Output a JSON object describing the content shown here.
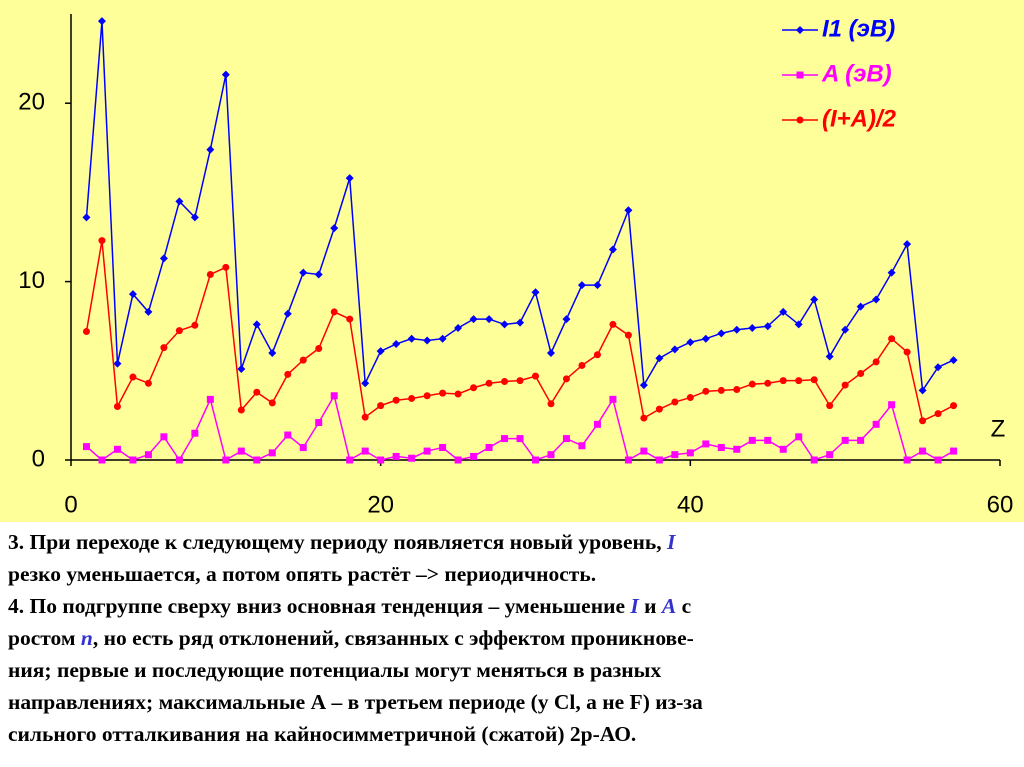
{
  "chart_data": {
    "type": "line",
    "x": [
      1,
      2,
      3,
      4,
      5,
      6,
      7,
      8,
      9,
      10,
      11,
      12,
      13,
      14,
      15,
      16,
      17,
      18,
      19,
      20,
      21,
      22,
      23,
      24,
      25,
      26,
      27,
      28,
      29,
      30,
      31,
      32,
      33,
      34,
      35,
      36,
      37,
      38,
      39,
      40,
      41,
      42,
      43,
      44,
      45,
      46,
      47,
      48,
      49,
      50,
      51,
      52,
      53,
      54,
      55,
      56,
      57
    ],
    "series": [
      {
        "name": "I1 (эВ)",
        "color": "#0000ff",
        "marker": "diamond",
        "values": [
          13.6,
          24.6,
          5.4,
          9.3,
          8.3,
          11.3,
          14.5,
          13.6,
          17.4,
          21.6,
          5.1,
          7.6,
          6.0,
          8.2,
          10.5,
          10.4,
          13.0,
          15.8,
          4.3,
          6.1,
          6.5,
          6.8,
          6.7,
          6.8,
          7.4,
          7.9,
          7.9,
          7.6,
          7.7,
          9.4,
          6.0,
          7.9,
          9.8,
          9.8,
          11.8,
          14.0,
          4.2,
          5.7,
          6.2,
          6.6,
          6.8,
          7.1,
          7.3,
          7.4,
          7.5,
          8.3,
          7.6,
          9.0,
          5.8,
          7.3,
          8.6,
          9.0,
          10.5,
          12.1,
          3.9,
          5.2,
          5.6
        ]
      },
      {
        "name": "A (эВ)",
        "color": "#ff00ff",
        "marker": "square",
        "values": [
          0.75,
          0,
          0.6,
          0,
          0.3,
          1.3,
          0,
          1.5,
          3.4,
          0,
          0.5,
          0,
          0.4,
          1.4,
          0.7,
          2.1,
          3.6,
          0,
          0.5,
          0,
          0.2,
          0.1,
          0.5,
          0.7,
          0,
          0.2,
          0.7,
          1.2,
          1.2,
          0,
          0.3,
          1.2,
          0.8,
          2.0,
          3.4,
          0,
          0.5,
          0,
          0.3,
          0.4,
          0.9,
          0.7,
          0.6,
          1.1,
          1.1,
          0.6,
          1.3,
          0,
          0.3,
          1.1,
          1.1,
          2.0,
          3.1,
          0,
          0.5,
          0,
          0.5
        ]
      },
      {
        "name": "(I+A)/2",
        "color": "#ff0000",
        "marker": "circle",
        "values": [
          7.2,
          12.3,
          3.0,
          4.65,
          4.3,
          6.3,
          7.25,
          7.55,
          10.4,
          10.8,
          2.8,
          3.8,
          3.2,
          4.8,
          5.6,
          6.25,
          8.3,
          7.9,
          2.4,
          3.05,
          3.35,
          3.45,
          3.6,
          3.75,
          3.7,
          4.05,
          4.3,
          4.4,
          4.45,
          4.7,
          3.15,
          4.55,
          5.3,
          5.9,
          7.6,
          7.0,
          2.35,
          2.85,
          3.25,
          3.5,
          3.85,
          3.9,
          3.95,
          4.25,
          4.3,
          4.45,
          4.45,
          4.5,
          3.05,
          4.2,
          4.85,
          5.5,
          6.8,
          6.05,
          2.2,
          2.6,
          3.05
        ]
      }
    ],
    "x_label": "Z",
    "xlim": [
      0,
      60
    ],
    "xticks": [
      0,
      20,
      40,
      60
    ],
    "ylim": [
      0,
      25
    ],
    "yticks": [
      0,
      10,
      20
    ],
    "legend": "top-right"
  },
  "text": {
    "lines": [
      [
        "3. При переходе к следующему периоду появляется новый уровень, ",
        "I"
      ],
      [
        "резко уменьшается, а потом опять растёт –> периодичность."
      ],
      [
        "4. По подгруппе сверху вниз основная тенденция – уменьшение ",
        "I",
        " и ",
        "A",
        " с"
      ],
      [
        "ростом ",
        "n",
        ", но есть ряд отклонений, связанных с эффектом проникнове-"
      ],
      [
        "ния; первые и последующие потенциалы могут меняться в разных"
      ],
      [
        "направлениях; максимальные А – в третьем периоде (у Cl, а не F) из-за"
      ],
      [
        "сильного отталкивания на кайносимметричной (сжатой) 2р-АО."
      ]
    ]
  }
}
